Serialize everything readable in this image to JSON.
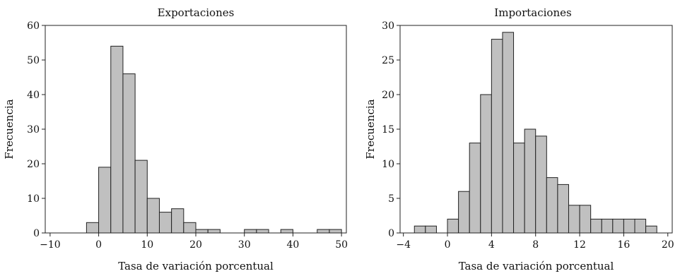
{
  "chart_data": [
    {
      "type": "bar",
      "title": "Exportaciones",
      "xlabel": "Tasa de variación porcentual",
      "ylabel": "Frecuencia",
      "xlim": [
        -11,
        51
      ],
      "ylim": [
        0,
        60
      ],
      "xticks": [
        -10,
        0,
        10,
        20,
        30,
        40,
        50
      ],
      "yticks": [
        0,
        10,
        20,
        30,
        40,
        50,
        60
      ],
      "xtick_labels": [
        "−10",
        "0",
        "10",
        "20",
        "30",
        "40",
        "50"
      ],
      "ytick_labels": [
        "0",
        "10",
        "20",
        "30",
        "40",
        "50",
        "60"
      ],
      "bin_width": 2.5,
      "bin_starts": [
        -2.5,
        0,
        2.5,
        5,
        7.5,
        10,
        12.5,
        15,
        17.5,
        20,
        22.5,
        30,
        32.5,
        37.5,
        45,
        47.5
      ],
      "values": [
        3,
        19,
        54,
        46,
        21,
        10,
        6,
        7,
        3,
        1,
        1,
        1,
        1,
        1,
        1,
        1
      ],
      "grid": false
    },
    {
      "type": "bar",
      "title": "Importaciones",
      "xlabel": "Tasa de variación porcentual",
      "ylabel": "Frecuencia",
      "xlim": [
        -4.3,
        20.4
      ],
      "ylim": [
        0,
        30
      ],
      "xticks": [
        -4,
        0,
        4,
        8,
        12,
        16,
        20
      ],
      "yticks": [
        0,
        5,
        10,
        15,
        20,
        25,
        30
      ],
      "xtick_labels": [
        "−4",
        "0",
        "4",
        "8",
        "12",
        "16",
        "20"
      ],
      "ytick_labels": [
        "0",
        "5",
        "10",
        "15",
        "20",
        "25",
        "30"
      ],
      "bin_width": 1,
      "bin_starts": [
        -3,
        -2,
        0,
        1,
        2,
        3,
        4,
        5,
        6,
        7,
        8,
        9,
        10,
        11,
        12,
        13,
        14,
        15,
        16,
        17,
        18
      ],
      "values": [
        1,
        1,
        2,
        6,
        13,
        20,
        28,
        29,
        13,
        15,
        14,
        8,
        7,
        4,
        4,
        2,
        2,
        2,
        2,
        2,
        1
      ],
      "grid": false
    }
  ]
}
